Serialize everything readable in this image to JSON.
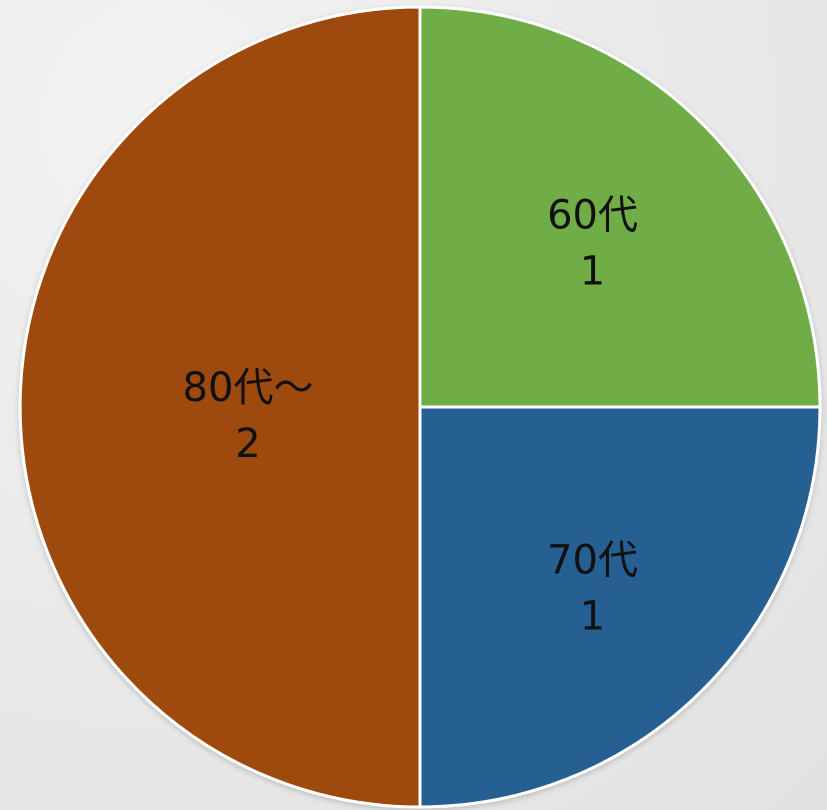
{
  "chart_data": {
    "type": "pie",
    "title": "",
    "start_angle_deg": 0,
    "direction": "clockwise",
    "slices": [
      {
        "label": "60代",
        "value": 1,
        "color": "#70ad47"
      },
      {
        "label": "70代",
        "value": 1,
        "color": "#255e91"
      },
      {
        "label": "80代～",
        "value": 2,
        "color": "#9e480e"
      }
    ],
    "border_color": "#ffffff",
    "label_color": "#111111"
  }
}
